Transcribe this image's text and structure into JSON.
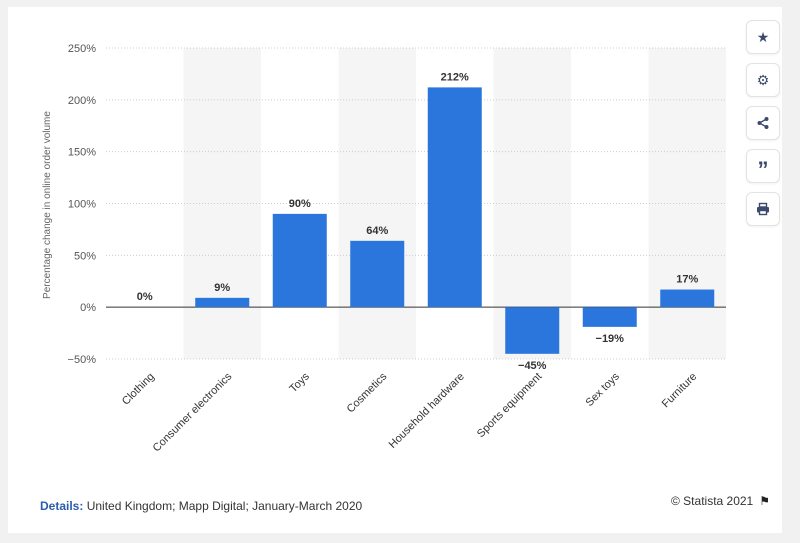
{
  "chart_data": {
    "type": "bar",
    "categories": [
      "Clothing",
      "Consumer electronics",
      "Toys",
      "Cosmetics",
      "Household hardware",
      "Sports equipment",
      "Sex toys",
      "Furniture"
    ],
    "values": [
      0,
      9,
      90,
      64,
      212,
      -45,
      -19,
      17
    ],
    "data_labels": [
      "0%",
      "9%",
      "90%",
      "64%",
      "212%",
      "−45%",
      "−19%",
      "17%"
    ],
    "title": "",
    "xlabel": "",
    "ylabel": "Percentage change in online order volume",
    "ylim": [
      -50,
      250
    ],
    "yticks": [
      250,
      200,
      150,
      100,
      50,
      0,
      -50
    ],
    "ytick_labels": [
      "250%",
      "200%",
      "150%",
      "100%",
      "50%",
      "0%",
      "−50%"
    ],
    "bar_color": "#2a76dd",
    "grid": true,
    "legend": "none"
  },
  "toolbar": {
    "items": [
      {
        "name": "star-icon",
        "glyph": "★"
      },
      {
        "name": "gear-icon",
        "glyph": "⚙"
      },
      {
        "name": "share-icon",
        "glyph": "share"
      },
      {
        "name": "quote-icon",
        "glyph": "”"
      },
      {
        "name": "print-icon",
        "glyph": "print"
      }
    ]
  },
  "footer": {
    "details_label": "Details:",
    "details_text": " United Kingdom; Mapp Digital; January-March 2020",
    "credit": "© Statista 2021",
    "flag_glyph": "⚑"
  }
}
